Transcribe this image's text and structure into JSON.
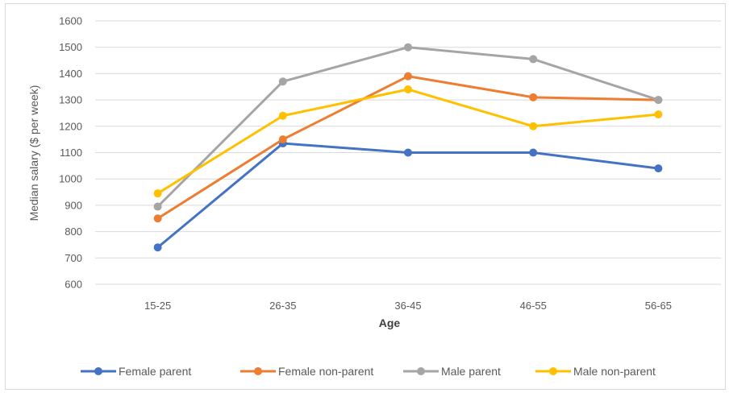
{
  "chart_data": {
    "type": "line",
    "xlabel": "Age",
    "ylabel": "Median salary ($ per week)",
    "categories": [
      "15-25",
      "26-35",
      "36-45",
      "46-55",
      "56-65"
    ],
    "ylim": [
      600,
      1600
    ],
    "yticks": [
      600,
      700,
      800,
      900,
      1000,
      1100,
      1200,
      1300,
      1400,
      1500,
      1600
    ],
    "grid": true,
    "legend": "bottom",
    "series": [
      {
        "name": "Female parent",
        "color": "#4472c4",
        "values": [
          740,
          1135,
          1100,
          1100,
          1040
        ]
      },
      {
        "name": "Female non-parent",
        "color": "#ed7d31",
        "values": [
          850,
          1150,
          1390,
          1310,
          1300
        ]
      },
      {
        "name": "Male parent",
        "color": "#a5a5a5",
        "values": [
          895,
          1370,
          1500,
          1455,
          1300
        ]
      },
      {
        "name": "Male non-parent",
        "color": "#ffc000",
        "values": [
          945,
          1240,
          1340,
          1200,
          1245
        ]
      }
    ]
  }
}
